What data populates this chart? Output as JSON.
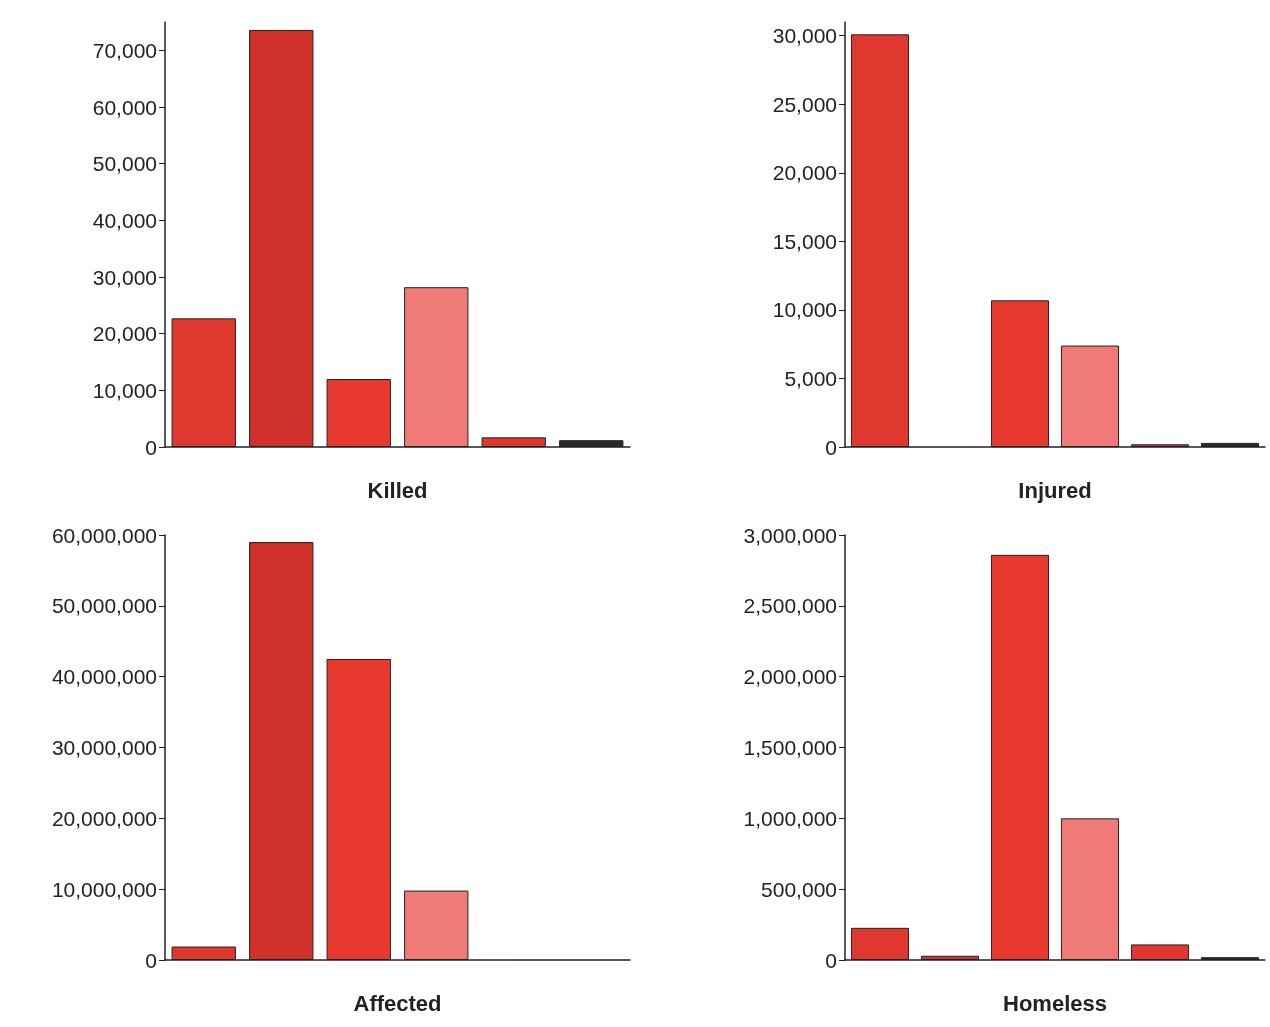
{
  "chart_data": [
    {
      "type": "bar",
      "xlabel": "Killed",
      "categories": [
        null,
        null,
        null,
        null,
        null,
        null
      ],
      "values": [
        22700,
        73600,
        12000,
        28200,
        1700,
        1200
      ],
      "colors": [
        "#e0382e",
        "#d0302a",
        "#e8392f",
        "#f07a76",
        "#e0382e",
        "#2a2a2a"
      ],
      "ylim": [
        0,
        75000
      ],
      "yticks": [
        {
          "value": 0,
          "label": "0"
        },
        {
          "value": 10000,
          "label": "10,000"
        },
        {
          "value": 20000,
          "label": "20,000"
        },
        {
          "value": 30000,
          "label": "30,000"
        },
        {
          "value": 40000,
          "label": "40,000"
        },
        {
          "value": 50000,
          "label": "50,000"
        },
        {
          "value": 60000,
          "label": "60,000"
        },
        {
          "value": 70000,
          "label": "70,000"
        }
      ]
    },
    {
      "type": "bar",
      "xlabel": "Injured",
      "categories": [
        null,
        null,
        null,
        null,
        null,
        null
      ],
      "values": [
        30100,
        0,
        10700,
        7400,
        200,
        300
      ],
      "colors": [
        "#e0382e",
        "#d0302a",
        "#e8392f",
        "#f07a76",
        "#e0382e",
        "#2a2a2a"
      ],
      "ylim": [
        0,
        31000
      ],
      "yticks": [
        {
          "value": 0,
          "label": "0"
        },
        {
          "value": 5000,
          "label": "5,000"
        },
        {
          "value": 10000,
          "label": "10,000"
        },
        {
          "value": 15000,
          "label": "15,000"
        },
        {
          "value": 20000,
          "label": "20,000"
        },
        {
          "value": 25000,
          "label": "25,000"
        },
        {
          "value": 30000,
          "label": "30,000"
        }
      ]
    },
    {
      "type": "bar",
      "xlabel": "Affected",
      "categories": [
        null,
        null,
        null,
        null,
        null,
        null
      ],
      "values": [
        1900000,
        59000000,
        42500000,
        9800000,
        0,
        0
      ],
      "colors": [
        "#e0382e",
        "#d0302a",
        "#e8392f",
        "#f07a76",
        "#e0382e",
        "#2a2a2a"
      ],
      "ylim": [
        0,
        60000000
      ],
      "yticks": [
        {
          "value": 0,
          "label": "0"
        },
        {
          "value": 10000000,
          "label": "10,000,000"
        },
        {
          "value": 20000000,
          "label": "20,000,000"
        },
        {
          "value": 30000000,
          "label": "30,000,000"
        },
        {
          "value": 40000000,
          "label": "40,000,000"
        },
        {
          "value": 50000000,
          "label": "50,000,000"
        },
        {
          "value": 60000000,
          "label": "60,000,000"
        }
      ]
    },
    {
      "type": "bar",
      "xlabel": "Homeless",
      "categories": [
        null,
        null,
        null,
        null,
        null,
        null
      ],
      "values": [
        227000,
        30000,
        2860000,
        1000000,
        110000,
        20000
      ],
      "colors": [
        "#e0382e",
        "#d0302a",
        "#e8392f",
        "#f07a76",
        "#e0382e",
        "#2a2a2a"
      ],
      "ylim": [
        0,
        3000000
      ],
      "yticks": [
        {
          "value": 0,
          "label": "0"
        },
        {
          "value": 500000,
          "label": "500,000"
        },
        {
          "value": 1000000,
          "label": "1,000,000"
        },
        {
          "value": 1500000,
          "label": "1,500,000"
        },
        {
          "value": 2000000,
          "label": "2,000,000"
        },
        {
          "value": 2500000,
          "label": "2,500,000"
        },
        {
          "value": 3000000,
          "label": "3,000,000"
        }
      ]
    }
  ]
}
